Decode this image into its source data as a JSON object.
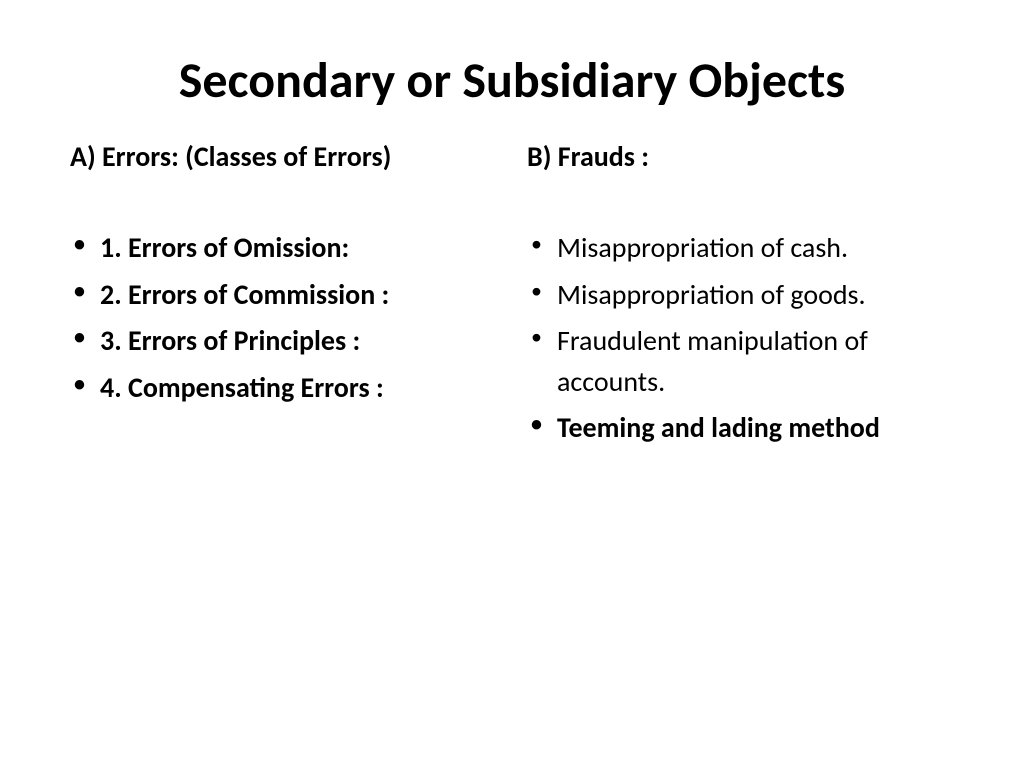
{
  "title": "Secondary or Subsidiary Objects",
  "columns": {
    "left": {
      "heading": "A) Errors: (Classes of Errors)",
      "items": [
        {
          "text": "1. Errors of Omission:",
          "bold": true
        },
        {
          "text": "2. Errors of Commission :",
          "bold": true
        },
        {
          "text": "3. Errors of Principles :",
          "bold": true
        },
        {
          "text": "4. Compensating Errors :",
          "bold": true
        }
      ]
    },
    "right": {
      "heading": "B) Frauds :",
      "items": [
        {
          "text": "Misappropriation of cash.",
          "bold": false
        },
        {
          "text": "Misappropriation of goods.",
          "bold": false
        },
        {
          "text": "Fraudulent manipulation of accounts.",
          "bold": false
        },
        {
          "text": "Teeming and lading method",
          "bold": true
        }
      ]
    }
  },
  "style": {
    "background_color": "#ffffff",
    "text_color": "#000000",
    "title_fontsize": 50,
    "heading_fontsize": 28,
    "body_fontsize": 28,
    "font_family": "Calibri"
  }
}
